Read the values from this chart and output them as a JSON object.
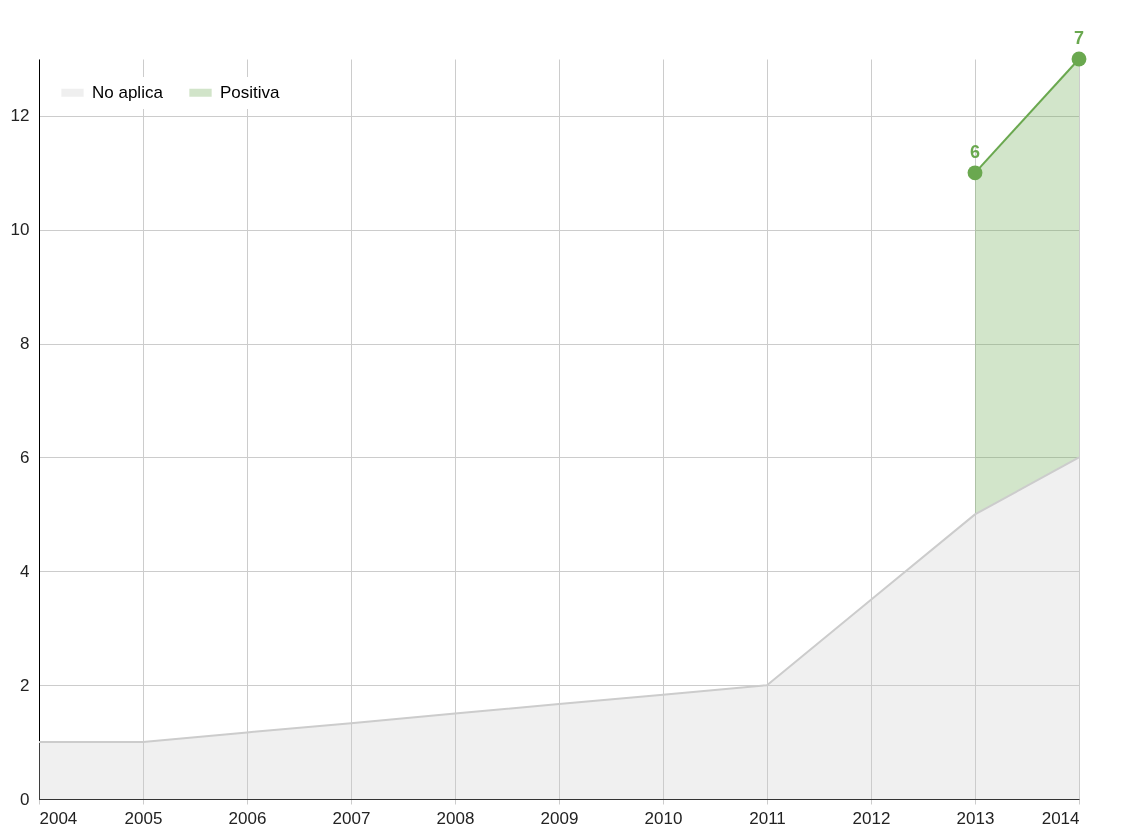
{
  "chart_data": {
    "type": "area",
    "stacked": true,
    "x": [
      2004,
      2005,
      2006,
      2007,
      2008,
      2009,
      2010,
      2011,
      2012,
      2013,
      2014
    ],
    "series": [
      {
        "name": "No aplica",
        "color": "#cccccc",
        "marker": "none",
        "values": [
          1,
          1,
          1.17,
          1.33,
          1.5,
          1.67,
          1.83,
          2,
          3.5,
          5,
          6
        ]
      },
      {
        "name": "Positiva",
        "color": "#6aa84f",
        "marker": "circle",
        "values": [
          null,
          null,
          null,
          null,
          null,
          null,
          null,
          null,
          null,
          6,
          7
        ],
        "value_labels": [
          null,
          null,
          null,
          null,
          null,
          null,
          null,
          null,
          null,
          "6",
          "7"
        ]
      }
    ],
    "xlim": [
      2004,
      2014
    ],
    "xticks": [
      2004,
      2005,
      2006,
      2007,
      2008,
      2009,
      2010,
      2011,
      2012,
      2013,
      2014
    ],
    "ylim": [
      0,
      13
    ],
    "yticks": [
      0,
      2,
      4,
      6,
      8,
      10,
      12
    ],
    "grid": true,
    "legend": "top left"
  }
}
